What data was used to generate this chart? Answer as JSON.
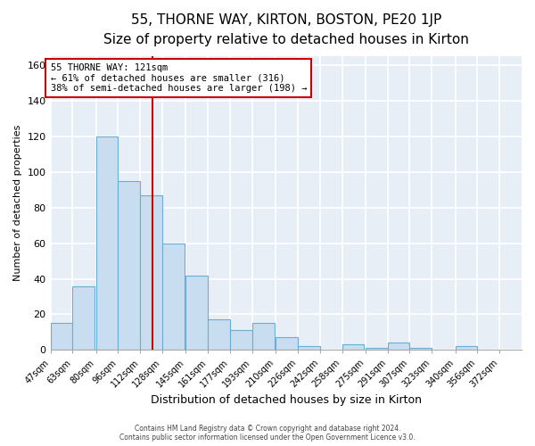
{
  "title": "55, THORNE WAY, KIRTON, BOSTON, PE20 1JP",
  "subtitle": "Size of property relative to detached houses in Kirton",
  "xlabel": "Distribution of detached houses by size in Kirton",
  "ylabel": "Number of detached properties",
  "bar_left_edges": [
    47,
    63,
    80,
    96,
    112,
    128,
    145,
    161,
    177,
    193,
    210,
    226,
    242,
    258,
    275,
    291,
    307,
    323,
    340,
    356
  ],
  "bar_heights": [
    15,
    36,
    120,
    95,
    87,
    60,
    42,
    17,
    11,
    15,
    7,
    2,
    0,
    3,
    1,
    4,
    1,
    0,
    2,
    0
  ],
  "bin_width": 16,
  "bar_color": "#c8ddf0",
  "bar_edge_color": "#6aaed6",
  "tick_labels": [
    "47sqm",
    "63sqm",
    "80sqm",
    "96sqm",
    "112sqm",
    "128sqm",
    "145sqm",
    "161sqm",
    "177sqm",
    "193sqm",
    "210sqm",
    "226sqm",
    "242sqm",
    "258sqm",
    "275sqm",
    "291sqm",
    "307sqm",
    "323sqm",
    "340sqm",
    "356sqm",
    "372sqm"
  ],
  "tick_positions": [
    47,
    63,
    80,
    96,
    112,
    128,
    145,
    161,
    177,
    193,
    210,
    226,
    242,
    258,
    275,
    291,
    307,
    323,
    340,
    356,
    372
  ],
  "vline_x": 121,
  "vline_color": "#cc0000",
  "ylim": [
    0,
    165
  ],
  "yticks": [
    0,
    20,
    40,
    60,
    80,
    100,
    120,
    140,
    160
  ],
  "annotation_title": "55 THORNE WAY: 121sqm",
  "annotation_line1": "← 61% of detached houses are smaller (316)",
  "annotation_line2": "38% of semi-detached houses are larger (198) →",
  "footer1": "Contains HM Land Registry data © Crown copyright and database right 2024.",
  "footer2": "Contains public sector information licensed under the Open Government Licence v3.0.",
  "background_color": "#ffffff",
  "plot_bg_color": "#e8eef5",
  "grid_color": "#ffffff",
  "title_fontsize": 11,
  "subtitle_fontsize": 9.5
}
